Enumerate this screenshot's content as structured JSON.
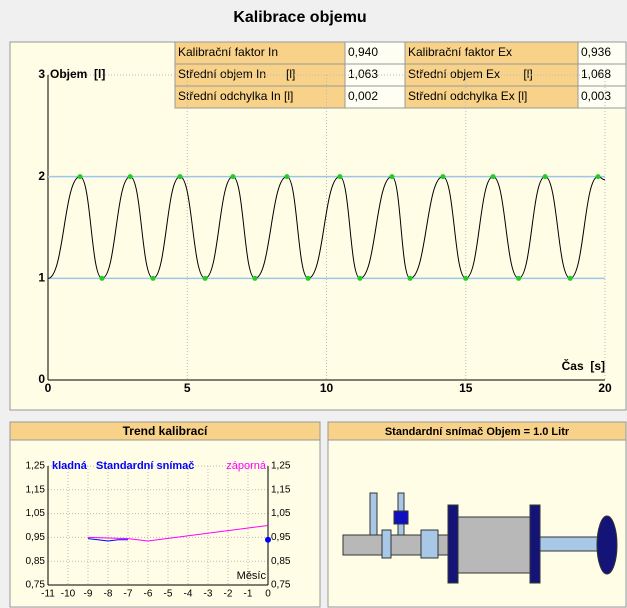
{
  "title": "Kalibrace objemu",
  "table": {
    "rows": [
      [
        "Kalibrační faktor In",
        "0,940",
        "Kalibrační faktor Ex",
        "0,936"
      ],
      [
        "Střední objem In      [l]",
        "1,063",
        "Střední objem Ex       [l]",
        "1,068"
      ],
      [
        "Střední odchylka In [l]",
        "0,002",
        "Střední odchylka Ex [l]",
        "0,003"
      ]
    ]
  },
  "diagram": {
    "title": "Standardní snímač  Objem = 1.0 Litr"
  },
  "chart_data": [
    {
      "type": "line",
      "y_label": "Objem  [l]",
      "x_label": "Čas  [s]",
      "xlim": [
        0,
        20
      ],
      "ylim": [
        0,
        3
      ],
      "xticks": [
        0,
        5,
        10,
        15,
        20
      ],
      "yticks": [
        0,
        1,
        2,
        3
      ],
      "grid": true,
      "reference_lines": [
        1,
        2
      ],
      "reference_color": "#9cc6ea",
      "marker_color": "#22cc22",
      "series": [
        {
          "color": "#000000",
          "x": [
            0,
            1.15,
            1.94,
            2.95,
            3.77,
            4.74,
            5.64,
            6.64,
            7.43,
            8.58,
            9.34,
            10.48,
            11.2,
            12.35,
            13.0,
            14.18,
            15.0,
            15.98,
            16.9,
            17.85,
            18.75,
            19.75,
            20
          ],
          "values": [
            1,
            2,
            1,
            2,
            1,
            2,
            1,
            2,
            1,
            2,
            1,
            2,
            1,
            2,
            1,
            2,
            1,
            2,
            1,
            2,
            1,
            2,
            1.97
          ]
        }
      ]
    },
    {
      "type": "line",
      "title": "Trend kalibrací",
      "subtitle": "Standardní snímač",
      "x_label": "Měsíc",
      "xlim": [
        -11,
        0
      ],
      "ylim": [
        0.75,
        1.25
      ],
      "xticks": [
        -11,
        -10,
        -9,
        -8,
        -7,
        -6,
        -5,
        -4,
        -3,
        -2,
        -1,
        0
      ],
      "yticks": [
        {
          "value": 1.25,
          "label": "1,25"
        },
        {
          "value": 1.15,
          "label": "1,15"
        },
        {
          "value": 1.05,
          "label": "1,05"
        },
        {
          "value": 0.95,
          "label": "0,95"
        },
        {
          "value": 0.85,
          "label": "0,85"
        },
        {
          "value": 0.75,
          "label": "0,75"
        }
      ],
      "grid": true,
      "series": [
        {
          "name": "kladná",
          "color": "#0000ff",
          "x": [
            -9,
            -8.5,
            -8,
            -7.5,
            -7
          ],
          "values": [
            0.945,
            0.94,
            0.935,
            0.94,
            0.94
          ]
        },
        {
          "name": "záporná",
          "color": "#ff00ff",
          "x": [
            -9,
            -7,
            -6,
            0
          ],
          "values": [
            0.95,
            0.945,
            0.935,
            1.0
          ]
        }
      ],
      "current": {
        "x": 0,
        "value": 0.94,
        "color": "#0000ff"
      }
    }
  ]
}
